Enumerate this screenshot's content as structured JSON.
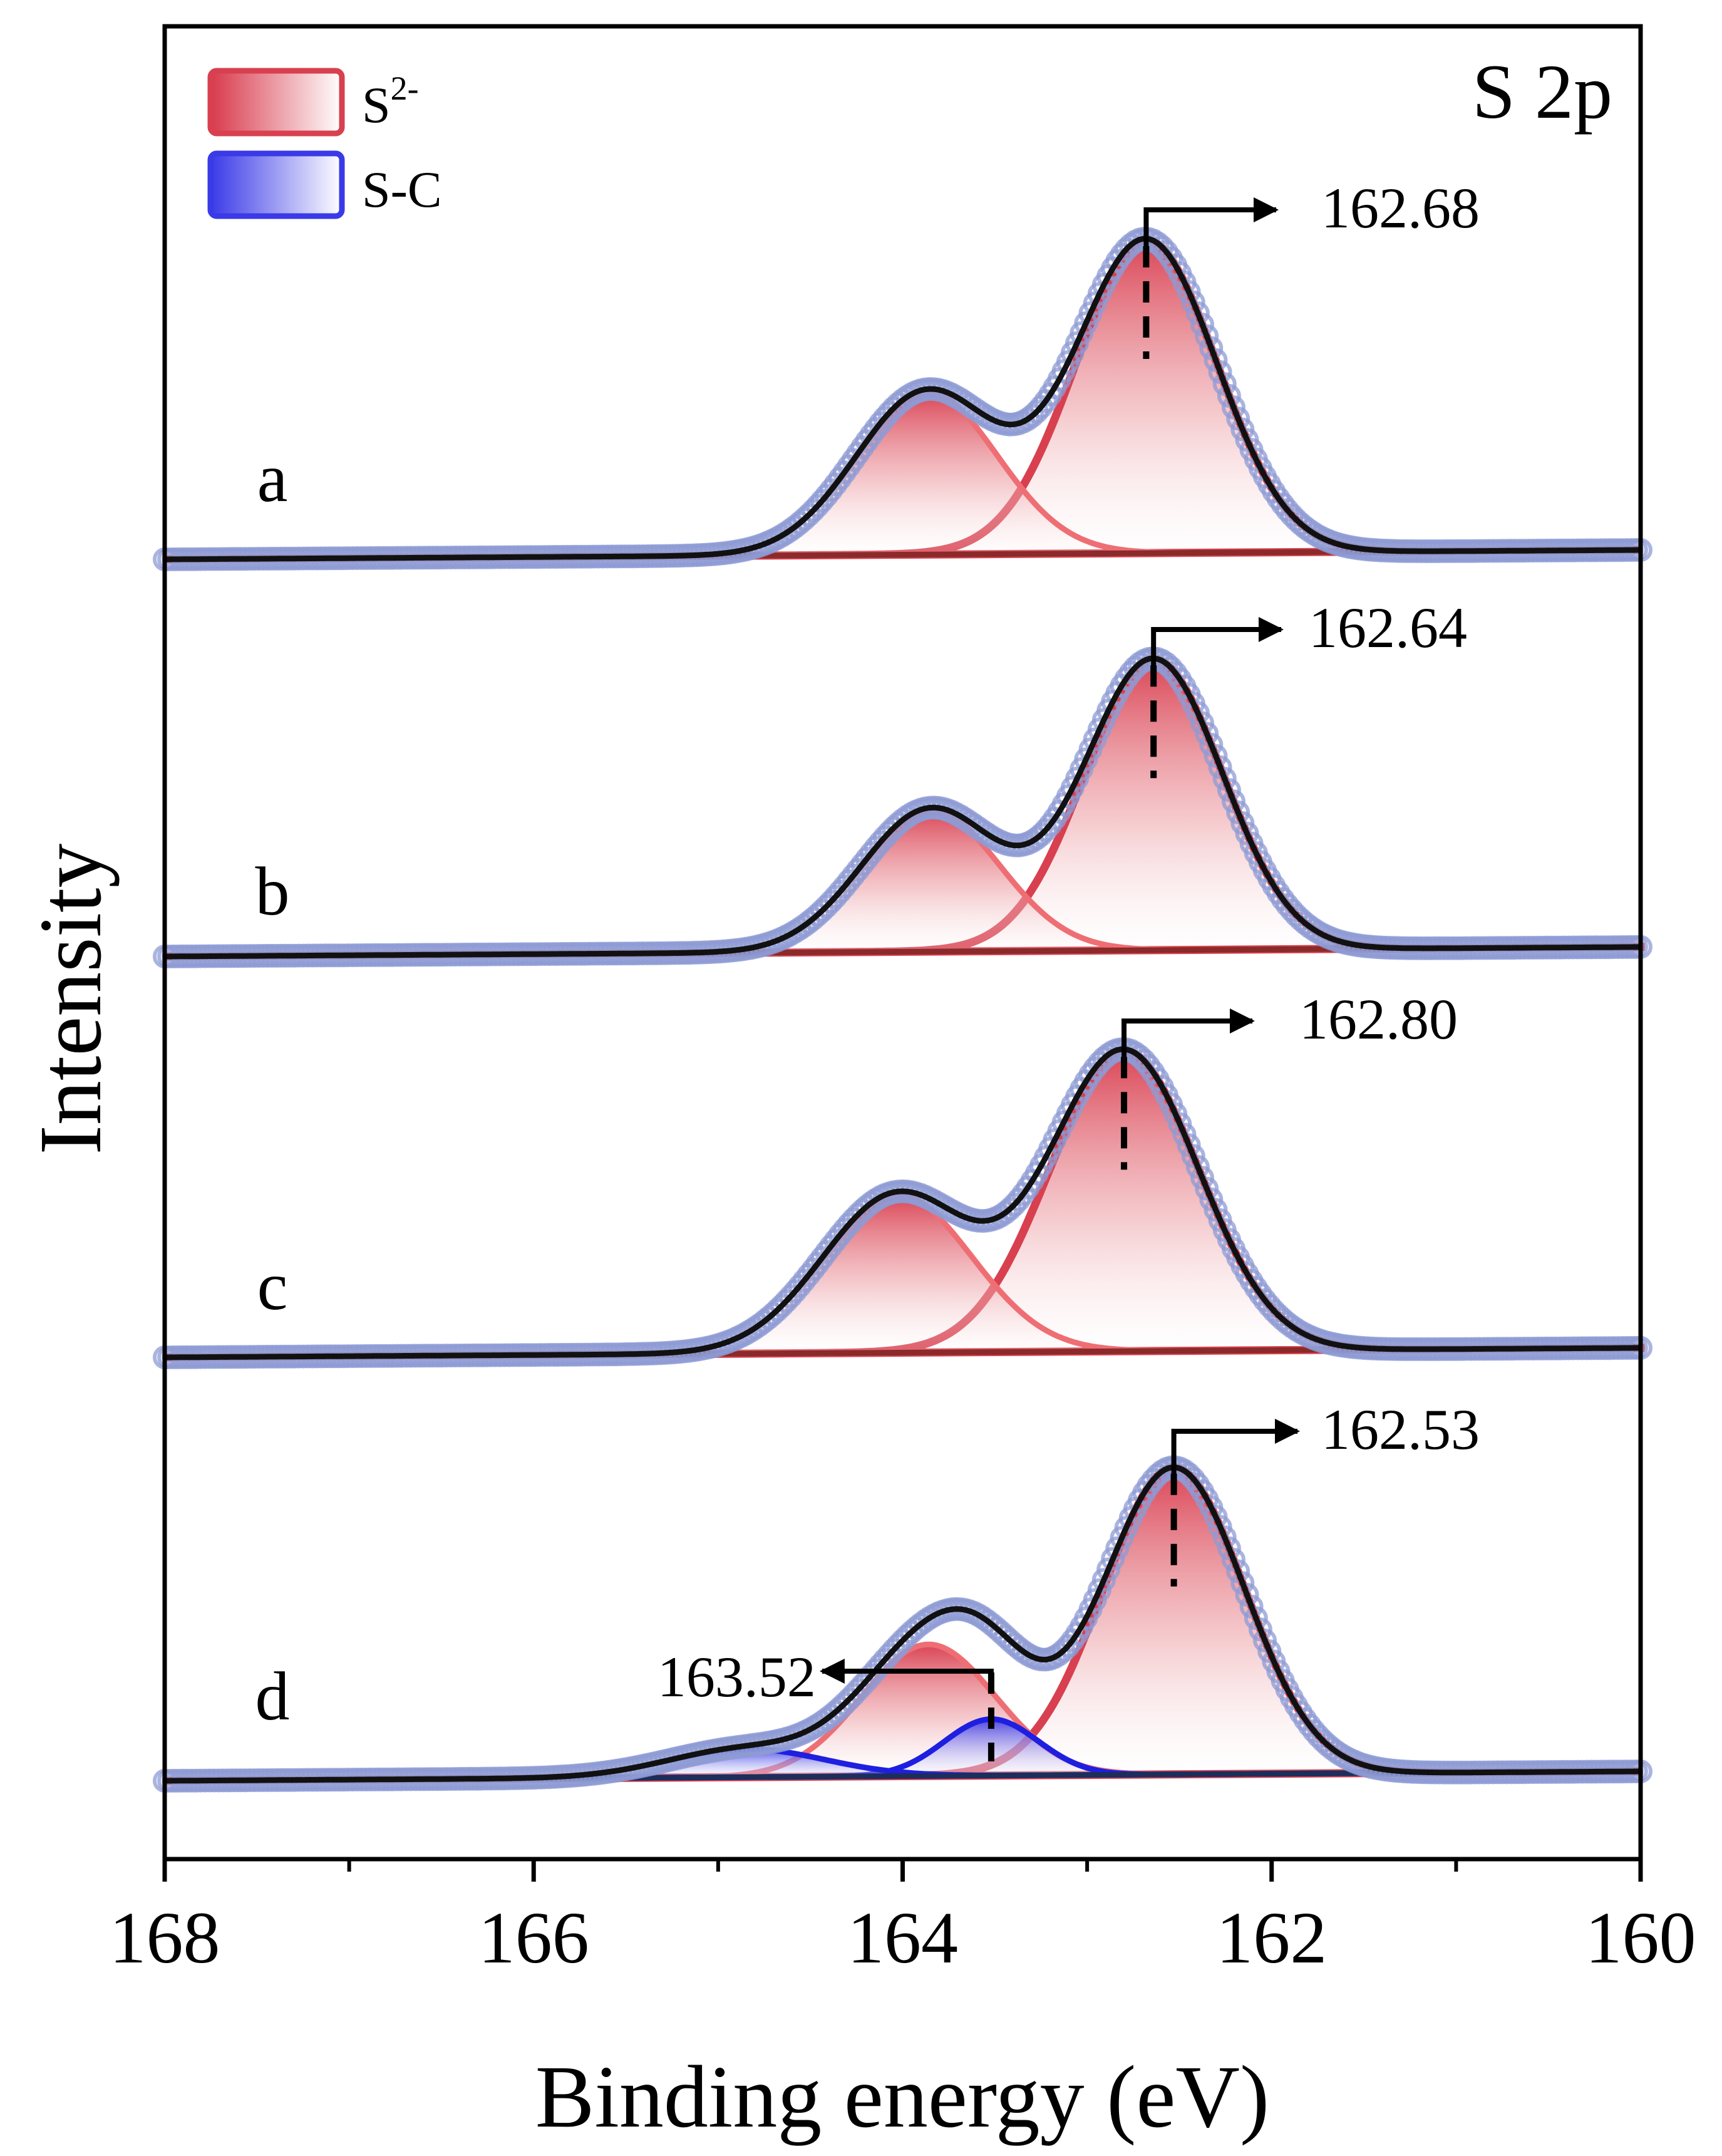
{
  "colors": {
    "s2_fill": "#d83a4c",
    "s2_line": "#d8404f",
    "s2_doublet_line": "#ee6e74",
    "sc_fill": "#3a3ae8",
    "sc_line": "#1f1fe0",
    "raw_markers": "#8e9bd4",
    "fit_envelope": "#111111",
    "background_line": "#808080",
    "baseline_a_to_c": "#8a2a2a",
    "baseline_d": "#1c2e5a"
  },
  "chart_data": {
    "type": "line",
    "title": "S 2p",
    "xlabel": "Binding energy (eV)",
    "ylabel": "Intensity",
    "xlim": [
      168,
      160
    ],
    "x_reversed": true,
    "xticks": [
      168,
      166,
      164,
      162,
      160
    ],
    "xtick_labels": [
      "168",
      "166",
      "164",
      "162",
      "160"
    ],
    "minor_xticks": [
      167,
      165,
      163,
      161
    ],
    "legend": {
      "placement": "top-left",
      "entries": [
        {
          "label": "S",
          "superscript": "2-",
          "component": "S2-"
        },
        {
          "label": "S-C",
          "superscript": "",
          "component": "S-C"
        }
      ]
    },
    "spectra": [
      {
        "label": "a",
        "background": [
          0.0,
          0.03
        ],
        "peaks": [
          {
            "component": "S2-",
            "center": 162.68,
            "height": 1.0,
            "fwhm": 0.9
          },
          {
            "component": "S2-",
            "center": 163.87,
            "height": 0.52,
            "fwhm": 0.9
          }
        ],
        "annotation": {
          "value": "162.68",
          "marker_x": 162.68,
          "arrow": "right"
        }
      },
      {
        "label": "b",
        "background": [
          0.0,
          0.03
        ],
        "peaks": [
          {
            "component": "S2-",
            "center": 162.64,
            "height": 0.92,
            "fwhm": 0.88
          },
          {
            "component": "S2-",
            "center": 163.85,
            "height": 0.45,
            "fwhm": 0.88
          }
        ],
        "annotation": {
          "value": "162.64",
          "marker_x": 162.64,
          "arrow": "right"
        }
      },
      {
        "label": "c",
        "background": [
          0.0,
          0.03
        ],
        "peaks": [
          {
            "component": "S2-",
            "center": 162.8,
            "height": 0.95,
            "fwhm": 0.95
          },
          {
            "component": "S2-",
            "center": 164.03,
            "height": 0.5,
            "fwhm": 0.95
          }
        ],
        "annotation": {
          "value": "162.80",
          "marker_x": 162.8,
          "arrow": "right"
        }
      },
      {
        "label": "d",
        "background": [
          0.0,
          0.03
        ],
        "peaks": [
          {
            "component": "S2-",
            "center": 162.53,
            "height": 0.98,
            "fwhm": 0.9
          },
          {
            "component": "S2-",
            "center": 163.86,
            "height": 0.42,
            "fwhm": 0.85
          },
          {
            "component": "S-C",
            "center": 163.52,
            "height": 0.18,
            "fwhm": 0.6
          },
          {
            "component": "S-C",
            "center": 164.85,
            "height": 0.09,
            "fwhm": 1.0
          }
        ],
        "annotation": {
          "value": "163.52",
          "marker_x": 163.52,
          "arrow": "left"
        },
        "annotation2": {
          "value": "162.53",
          "marker_x": 162.53,
          "arrow": "right"
        }
      }
    ]
  }
}
